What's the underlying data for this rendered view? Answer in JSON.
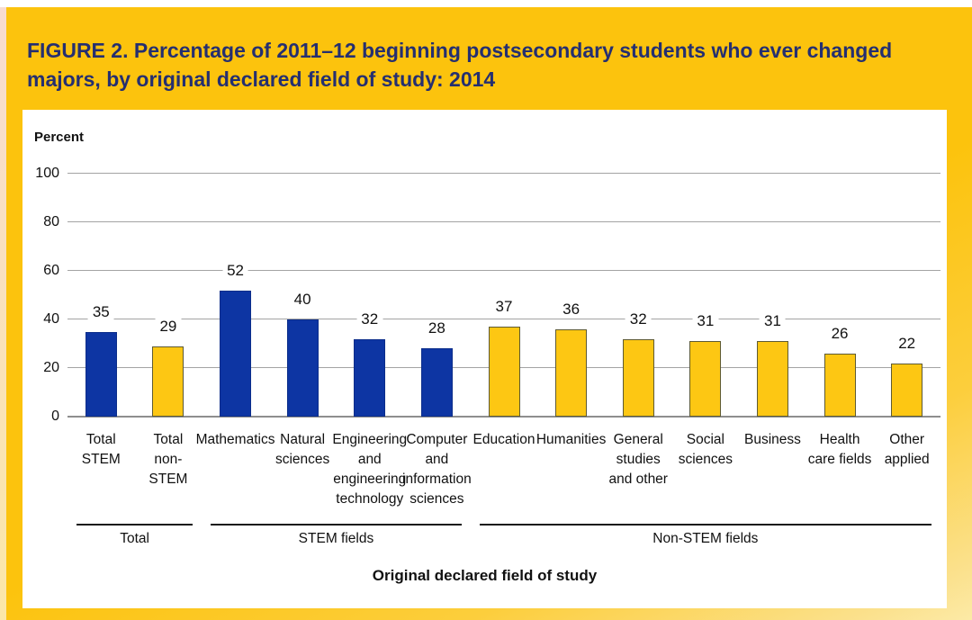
{
  "figure": {
    "title": "FIGURE 2. Percentage of 2011–12 beginning postsecondary students who ever changed majors, by original declared field of study: 2014"
  },
  "chart_data": {
    "type": "bar",
    "title": "FIGURE 2. Percentage of 2011–12 beginning postsecondary students who ever changed majors, by original declared field of study: 2014",
    "y_axis_header": "Percent",
    "xlabel": "Original declared field of study",
    "ylabel": "Percent",
    "ylim": [
      0,
      100
    ],
    "yticks": [
      0,
      20,
      40,
      60,
      80,
      100
    ],
    "grid": true,
    "value_labels_shown": true,
    "categories": [
      "Total\nSTEM",
      "Total\nnon-\nSTEM",
      "Mathematics",
      "Natural\nsciences",
      "Engineering\nand\nengineering\ntechnology",
      "Computer\nand\ninformation\nsciences",
      "Education",
      "Humanities",
      "General\nstudies\nand other",
      "Social\nsciences",
      "Business",
      "Health\ncare fields",
      "Other\napplied"
    ],
    "values": [
      35,
      29,
      52,
      40,
      32,
      28,
      37,
      36,
      32,
      31,
      31,
      26,
      22
    ],
    "bar_types": [
      "stem",
      "non-stem",
      "stem",
      "stem",
      "stem",
      "stem",
      "non-stem",
      "non-stem",
      "non-stem",
      "non-stem",
      "non-stem",
      "non-stem",
      "non-stem"
    ],
    "groups": [
      {
        "label": "Total",
        "from": 0,
        "to": 1
      },
      {
        "label": "STEM fields",
        "from": 2,
        "to": 5
      },
      {
        "label": "Non-STEM fields",
        "from": 6,
        "to": 12
      }
    ],
    "colors": {
      "stem_bar": "#0d35a3",
      "non_stem_bar": "#fdc713",
      "non_stem_bar_border": "#5e5a33",
      "gridline": "#a3a3a3",
      "title_text": "#252f70",
      "page_background": "#fcc30d"
    }
  }
}
